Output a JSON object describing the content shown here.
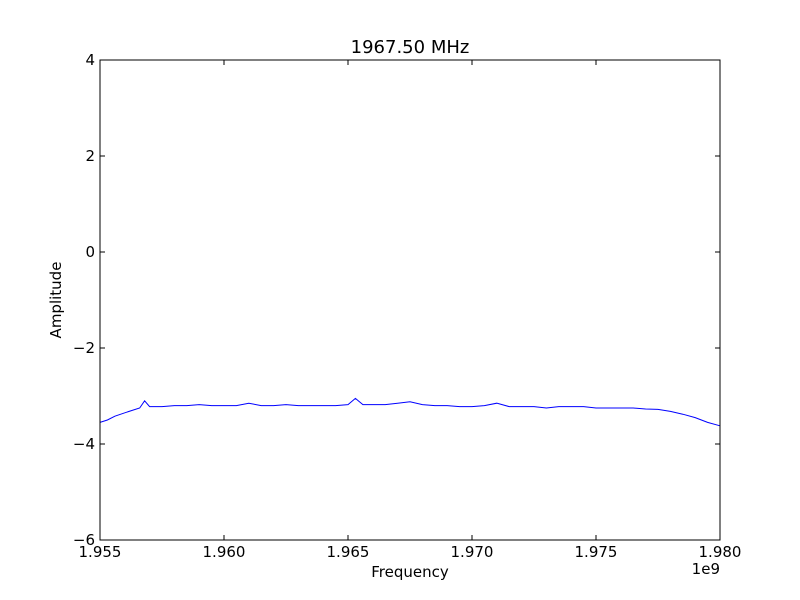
{
  "chart_data": {
    "type": "line",
    "title": "1967.50 MHz",
    "xlabel": "Frequency",
    "ylabel": "Amplitude",
    "x_offset_label": "1e9",
    "xlim": [
      1.955,
      1.98
    ],
    "ylim": [
      -6,
      4
    ],
    "xticks": [
      1.955,
      1.96,
      1.965,
      1.97,
      1.975,
      1.98
    ],
    "xtick_labels": [
      "1.955",
      "1.960",
      "1.965",
      "1.970",
      "1.975",
      "1.980"
    ],
    "yticks": [
      -6,
      -4,
      -2,
      0,
      2,
      4
    ],
    "ytick_labels": [
      "−6",
      "−4",
      "−2",
      "0",
      "2",
      "4"
    ],
    "grid": false,
    "legend": "none",
    "series": [
      {
        "color": "#0000ff",
        "x": [
          1.955,
          1.9553,
          1.9556,
          1.956,
          1.9563,
          1.9566,
          1.9568,
          1.957,
          1.9575,
          1.958,
          1.9585,
          1.959,
          1.9595,
          1.96,
          1.9605,
          1.961,
          1.9615,
          1.962,
          1.9625,
          1.963,
          1.9635,
          1.964,
          1.9645,
          1.965,
          1.9653,
          1.9656,
          1.966,
          1.9665,
          1.967,
          1.9675,
          1.968,
          1.9685,
          1.969,
          1.9695,
          1.97,
          1.9705,
          1.971,
          1.9715,
          1.972,
          1.9725,
          1.973,
          1.9735,
          1.974,
          1.9745,
          1.975,
          1.9755,
          1.976,
          1.9765,
          1.977,
          1.9775,
          1.978,
          1.9785,
          1.979,
          1.9795,
          1.98
        ],
        "y": [
          -3.55,
          -3.5,
          -3.42,
          -3.35,
          -3.3,
          -3.25,
          -3.1,
          -3.22,
          -3.22,
          -3.2,
          -3.2,
          -3.18,
          -3.2,
          -3.2,
          -3.2,
          -3.15,
          -3.2,
          -3.2,
          -3.18,
          -3.2,
          -3.2,
          -3.2,
          -3.2,
          -3.18,
          -3.05,
          -3.18,
          -3.18,
          -3.18,
          -3.15,
          -3.12,
          -3.18,
          -3.2,
          -3.2,
          -3.22,
          -3.22,
          -3.2,
          -3.15,
          -3.22,
          -3.22,
          -3.22,
          -3.25,
          -3.22,
          -3.22,
          -3.22,
          -3.25,
          -3.25,
          -3.25,
          -3.25,
          -3.27,
          -3.28,
          -3.32,
          -3.38,
          -3.45,
          -3.55,
          -3.62
        ]
      }
    ]
  }
}
